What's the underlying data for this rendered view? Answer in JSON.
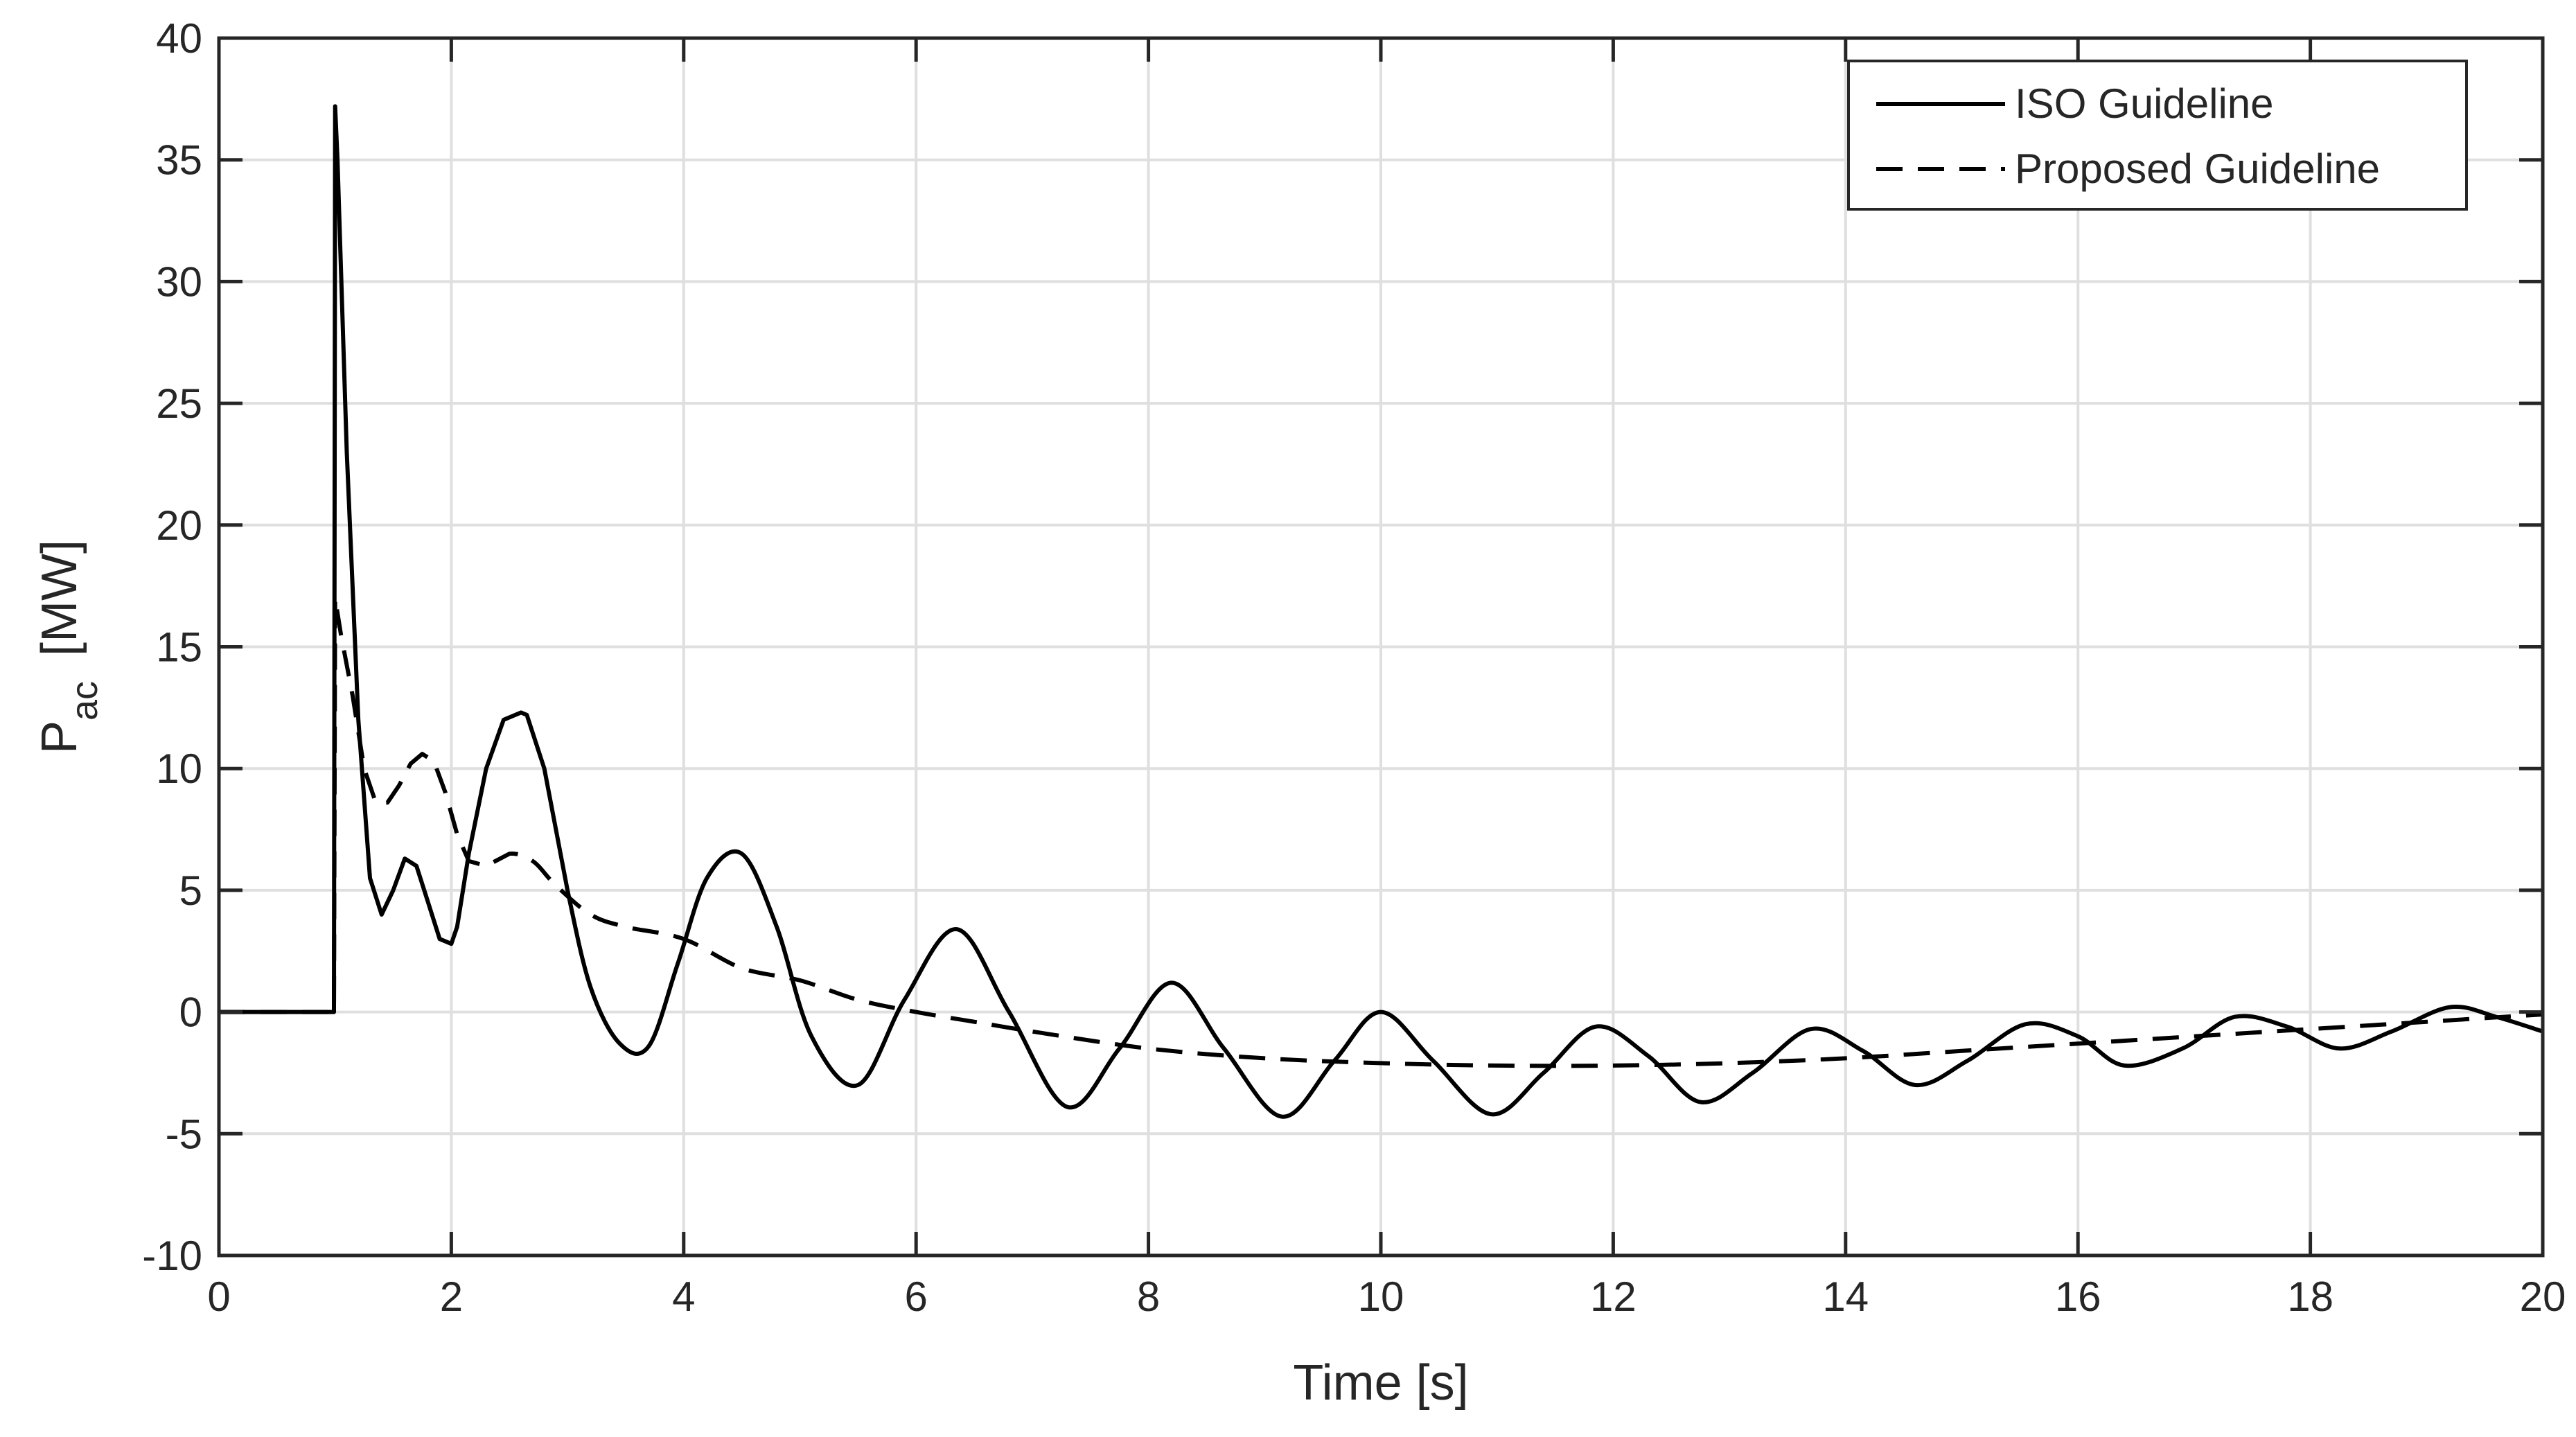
{
  "chart_data": {
    "type": "line",
    "title": "",
    "xlabel": "Time [s]",
    "ylabel": {
      "base": "P",
      "subscript": "ac",
      "unit": "[MW]"
    },
    "xlim": [
      0,
      20
    ],
    "ylim": [
      -10,
      40
    ],
    "xticks": [
      0,
      2,
      4,
      6,
      8,
      10,
      12,
      14,
      16,
      18,
      20
    ],
    "yticks": [
      -10,
      -5,
      0,
      5,
      10,
      15,
      20,
      25,
      30,
      35,
      40
    ],
    "xtick_labels": [
      "0",
      "2",
      "4",
      "6",
      "8",
      "10",
      "12",
      "14",
      "16",
      "18",
      "20"
    ],
    "ytick_labels": [
      "-10",
      "-5",
      "0",
      "5",
      "10",
      "15",
      "20",
      "25",
      "30",
      "35",
      "40"
    ],
    "grid": true,
    "legend_position": "top-right",
    "colors": {
      "line": "#000000",
      "grid": "#dfdfdf",
      "axis": "#262626"
    },
    "series": [
      {
        "name": "ISO Guideline",
        "style": "solid",
        "x": [
          0,
          0.99,
          1.0,
          1.02,
          1.1,
          1.2,
          1.3,
          1.4,
          1.5,
          1.6,
          1.7,
          1.8,
          1.9,
          2.0,
          2.05,
          2.15,
          2.3,
          2.45,
          2.6,
          2.65,
          2.8,
          3.0,
          3.2,
          3.45,
          3.7,
          3.95,
          4.2,
          4.5,
          4.8,
          5.1,
          5.5,
          5.9,
          6.35,
          6.8,
          7.3,
          7.75,
          8.2,
          8.65,
          9.15,
          9.6,
          10.0,
          10.45,
          10.95,
          11.4,
          11.85,
          12.3,
          12.75,
          13.2,
          13.7,
          14.15,
          14.6,
          15.05,
          15.55,
          16.0,
          16.4,
          16.9,
          17.35,
          17.8,
          18.25,
          18.7,
          19.2,
          19.6,
          20.0
        ],
        "y": [
          0,
          0,
          37.2,
          35.0,
          23.0,
          12.0,
          5.5,
          4.0,
          5.0,
          6.3,
          6.0,
          4.5,
          3.0,
          2.8,
          3.5,
          6.5,
          10.0,
          12.0,
          12.3,
          12.2,
          10.0,
          5.0,
          1.0,
          -1.3,
          -1.4,
          2.0,
          5.5,
          6.5,
          3.5,
          -1.0,
          -3.0,
          0.5,
          3.4,
          0.0,
          -3.9,
          -1.5,
          1.2,
          -1.5,
          -4.3,
          -2.0,
          0.0,
          -2.0,
          -4.2,
          -2.5,
          -0.6,
          -1.8,
          -3.7,
          -2.5,
          -0.7,
          -1.6,
          -3.0,
          -2.0,
          -0.5,
          -1.0,
          -2.2,
          -1.5,
          -0.2,
          -0.6,
          -1.5,
          -0.8,
          0.2,
          -0.2,
          -0.8
        ]
      },
      {
        "name": "Proposed Guideline",
        "style": "dashed",
        "x": [
          0,
          0.99,
          1.0,
          1.05,
          1.15,
          1.25,
          1.35,
          1.45,
          1.55,
          1.65,
          1.75,
          1.85,
          1.95,
          2.05,
          2.15,
          2.3,
          2.5,
          2.7,
          2.9,
          3.2,
          3.5,
          4.0,
          4.5,
          5.0,
          5.5,
          6.0,
          6.5,
          7.0,
          8.0,
          9.0,
          10.0,
          11.0,
          12.0,
          13.0,
          14.0,
          15.0,
          16.0,
          17.0,
          18.0,
          19.0,
          20.0
        ],
        "y": [
          0,
          0,
          17.0,
          15.5,
          13.0,
          10.0,
          8.6,
          8.6,
          9.3,
          10.2,
          10.6,
          10.3,
          9.0,
          7.3,
          6.2,
          6.0,
          6.5,
          6.2,
          5.2,
          4.0,
          3.5,
          3.0,
          1.8,
          1.3,
          0.5,
          0.0,
          -0.4,
          -0.8,
          -1.5,
          -1.9,
          -2.1,
          -2.2,
          -2.2,
          -2.1,
          -1.9,
          -1.6,
          -1.3,
          -1.0,
          -0.7,
          -0.4,
          -0.1
        ]
      }
    ]
  }
}
